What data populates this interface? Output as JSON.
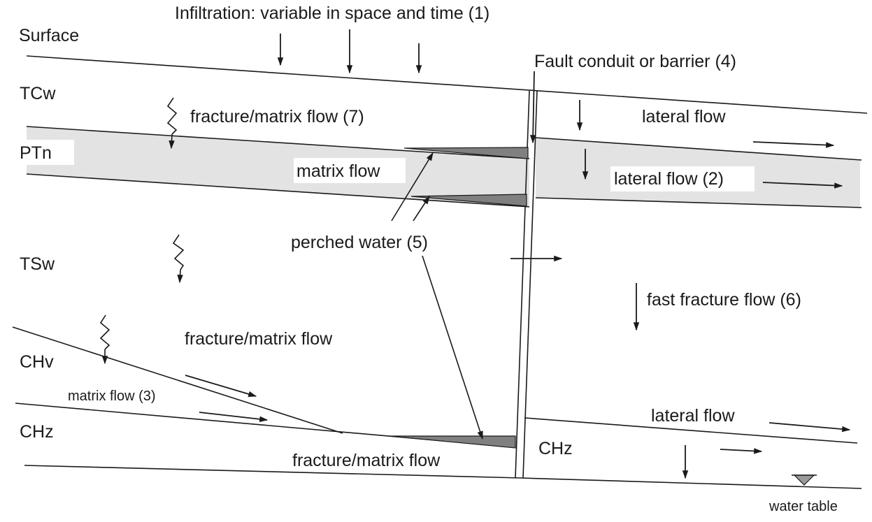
{
  "colors": {
    "ink": "#1a1a1a",
    "ptn_layer": "#e3e3e3",
    "perched_water": "#808080",
    "background": "#ffffff"
  },
  "labels": {
    "infiltration": "Infiltration: variable in space and time (1)",
    "surface": "Surface",
    "fault": "Fault conduit or barrier (4)",
    "tcw": "TCw",
    "ptn": "PTn",
    "tsw": "TSw",
    "chv": "CHv",
    "chz_left": "CHz",
    "chz_right": "CHz",
    "fracture_matrix_7": "fracture/matrix flow (7)",
    "lateral_flow_top": "lateral flow",
    "matrix_flow_ptn": "matrix flow",
    "lateral_flow_2": "lateral flow (2)",
    "perched_water_5": "perched water (5)",
    "fast_fracture_6": "fast fracture flow (6)",
    "fracture_matrix_mid": "fracture/matrix flow",
    "matrix_flow_3": "matrix flow (3)",
    "lateral_flow_bottom": "lateral flow",
    "fracture_matrix_bottom": "fracture/matrix flow",
    "water_table": "water table"
  }
}
